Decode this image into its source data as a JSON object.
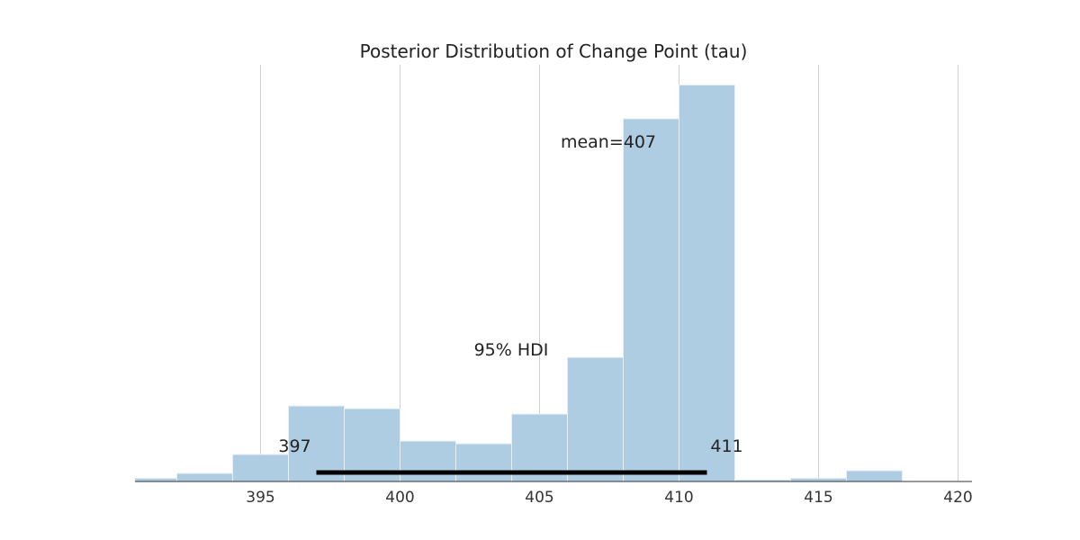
{
  "chart_data": {
    "type": "bar",
    "title": "Posterior Distribution of Change Point (tau)",
    "xlabel": "",
    "ylabel": "",
    "xlim": [
      390.5,
      420.5
    ],
    "ylim": [
      0,
      0.1545
    ],
    "x_ticks": [
      395,
      400,
      405,
      410,
      415,
      420
    ],
    "grid": "vertical",
    "bins": [
      {
        "x0": 390,
        "x1": 392,
        "density": 0.0012
      },
      {
        "x0": 392,
        "x1": 394,
        "density": 0.003
      },
      {
        "x0": 394,
        "x1": 396,
        "density": 0.01
      },
      {
        "x0": 396,
        "x1": 398,
        "density": 0.028
      },
      {
        "x0": 398,
        "x1": 400,
        "density": 0.027
      },
      {
        "x0": 400,
        "x1": 402,
        "density": 0.015
      },
      {
        "x0": 402,
        "x1": 404,
        "density": 0.014
      },
      {
        "x0": 404,
        "x1": 406,
        "density": 0.025
      },
      {
        "x0": 406,
        "x1": 408,
        "density": 0.046
      },
      {
        "x0": 408,
        "x1": 410,
        "density": 0.1345
      },
      {
        "x0": 410,
        "x1": 412,
        "density": 0.147
      },
      {
        "x0": 412,
        "x1": 414,
        "density": 0.0006
      },
      {
        "x0": 414,
        "x1": 416,
        "density": 0.0012
      },
      {
        "x0": 416,
        "x1": 418,
        "density": 0.004
      }
    ],
    "mean_label": "mean=407",
    "hdi": {
      "label": "95% HDI",
      "low": 397,
      "high": 411,
      "low_label": "397",
      "high_label": "411"
    },
    "colors": {
      "bar": "#aecde3",
      "bar_edge": "#e6eff6",
      "grid": "#d0d0d0",
      "axis": "#333333",
      "hdi_line": "#000000"
    }
  }
}
